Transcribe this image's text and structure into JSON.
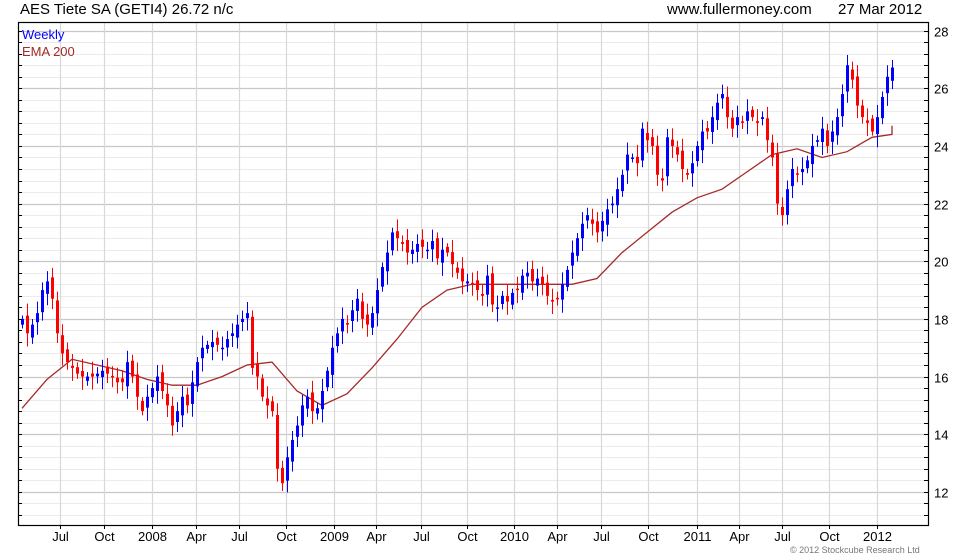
{
  "header": {
    "title": "AES Tiete SA (GETI4) 26.72 n/c",
    "site": "www.fullermoney.com",
    "date": "27 Mar 2012"
  },
  "legend": {
    "series1": "Weekly",
    "series2": "EMA 200"
  },
  "copyright": "© 2012 Stockcube Research Ltd",
  "colors": {
    "up": "#0000ff",
    "down": "#ff0000",
    "ema": "#a52a2a",
    "grid_major": "#c8c8c8",
    "grid_minor": "#ebebeb"
  },
  "chart_data": {
    "type": "candlestick",
    "title": "AES Tiete SA (GETI4) 26.72 n/c",
    "ylim": [
      10.85,
      28.3
    ],
    "xlim": [
      -0.8,
      181.2
    ],
    "y_ticks": [
      12,
      14,
      16,
      18,
      20,
      22,
      24,
      26,
      28
    ],
    "y_minor_step": 0.4,
    "x_ticks": [
      {
        "label": "Jul",
        "x": 7.6
      },
      {
        "label": "Oct",
        "x": 16.4
      },
      {
        "label": "2008",
        "x": 26
      },
      {
        "label": "Apr",
        "x": 34.8
      },
      {
        "label": "Jul",
        "x": 43.4
      },
      {
        "label": "Oct",
        "x": 52.8
      },
      {
        "label": "2009",
        "x": 62.4
      },
      {
        "label": "Apr",
        "x": 70.8
      },
      {
        "label": "Jul",
        "x": 79.8
      },
      {
        "label": "Oct",
        "x": 89
      },
      {
        "label": "2010",
        "x": 98.4
      },
      {
        "label": "Apr",
        "x": 107
      },
      {
        "label": "Jul",
        "x": 115.8
      },
      {
        "label": "Oct",
        "x": 125.2
      },
      {
        "label": "2011",
        "x": 135
      },
      {
        "label": "Apr",
        "x": 143.4
      },
      {
        "label": "Jul",
        "x": 152
      },
      {
        "label": "Oct",
        "x": 161.4
      },
      {
        "label": "2012",
        "x": 171
      }
    ],
    "closes": [
      18.0,
      17.5,
      17.8,
      18.2,
      19.0,
      19.3,
      18.7,
      17.5,
      16.8,
      16.5,
      16.3,
      16.1,
      16.0,
      16.0,
      16.0,
      16.1,
      16.2,
      16.1,
      16.0,
      15.8,
      15.8,
      16.5,
      16.0,
      15.3,
      14.8,
      15.3,
      15.6,
      16.0,
      15.5,
      15.0,
      14.3,
      14.8,
      15.3,
      15.0,
      15.8,
      16.5,
      17.0,
      17.1,
      17.2,
      17.1,
      17.0,
      17.3,
      17.5,
      17.8,
      18.0,
      18.2,
      16.3,
      16.0,
      15.3,
      15.0,
      14.8,
      12.8,
      12.3,
      13.2,
      13.8,
      14.3,
      15.0,
      15.3,
      14.8,
      14.9,
      15.5,
      16.2,
      17.0,
      17.5,
      18.0,
      17.8,
      18.3,
      18.7,
      18.0,
      17.8,
      18.2,
      19.0,
      19.8,
      20.3,
      21.0,
      20.8,
      20.6,
      20.3,
      20.4,
      20.6,
      20.5,
      20.4,
      20.7,
      20.1,
      20.4,
      20.3,
      19.9,
      19.6,
      19.3,
      19.3,
      19.2,
      19.0,
      18.8,
      19.5,
      18.5,
      18.4,
      18.8,
      18.6,
      18.9,
      19.0,
      19.5,
      19.6,
      19.3,
      19.4,
      19.2,
      18.8,
      18.6,
      18.7,
      19.2,
      19.7,
      20.3,
      20.8,
      21.3,
      21.6,
      21.3,
      21.0,
      21.4,
      21.8,
      22.0,
      22.5,
      23.0,
      23.7,
      23.6,
      23.4,
      24.6,
      24.2,
      24.0,
      23.0,
      22.8,
      24.3,
      24.0,
      23.7,
      23.2,
      23.0,
      23.4,
      24.0,
      24.5,
      24.5,
      25.0,
      25.5,
      25.8,
      25.0,
      24.6,
      25.0,
      24.8,
      25.2,
      25.0,
      24.8,
      25.0,
      24.2,
      23.6,
      22.0,
      21.6,
      22.5,
      23.2,
      23.0,
      23.2,
      23.5,
      24.0,
      24.2,
      24.6,
      24.0,
      24.5,
      25.0,
      25.8,
      26.8,
      26.3,
      25.4,
      25.0,
      24.8,
      24.5,
      25.0,
      25.7,
      26.4,
      26.72
    ],
    "ema200": [
      14.9,
      15.9,
      16.6,
      16.4,
      16.2,
      15.9,
      15.7,
      15.7,
      16.0,
      16.4,
      16.5,
      15.5,
      15.0,
      15.4,
      16.3,
      17.3,
      18.4,
      19.0,
      19.2,
      19.2,
      19.2,
      19.2,
      19.2,
      19.4,
      20.3,
      21.0,
      21.7,
      22.2,
      22.5,
      23.1,
      23.7,
      23.9,
      23.6,
      23.8,
      24.3,
      24.4,
      24.7
    ],
    "ema_step": 5
  }
}
